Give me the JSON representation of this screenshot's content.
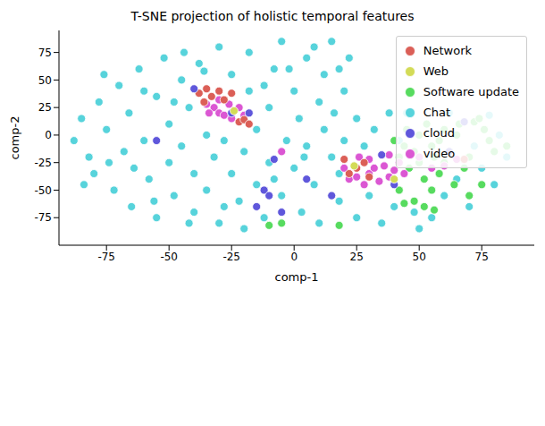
{
  "chart_data": {
    "type": "scatter",
    "title": "T-SNE projection of holistic temporal features",
    "x_label": "comp-1",
    "y_label": "comp-2",
    "xlim": [
      -94,
      96
    ],
    "ylim": [
      -100,
      95
    ],
    "xticks": [
      -75,
      -50,
      -25,
      0,
      25,
      50,
      75
    ],
    "yticks": [
      -75,
      -50,
      -25,
      0,
      25,
      50,
      75
    ],
    "grid": false,
    "legend": "upper right",
    "marker": "circle",
    "series": [
      {
        "name": "Network",
        "color": "#db5f57",
        "values": [
          [
            -38,
            38
          ],
          [
            -35,
            42
          ],
          [
            -33,
            35
          ],
          [
            -30,
            40
          ],
          [
            -28,
            32
          ],
          [
            -36,
            30
          ],
          [
            -25,
            38
          ],
          [
            -22,
            12
          ],
          [
            -20,
            14
          ],
          [
            -18,
            10
          ],
          [
            25,
            -30
          ],
          [
            28,
            -25
          ],
          [
            22,
            -35
          ],
          [
            30,
            -38
          ],
          [
            68,
            -22
          ],
          [
            20,
            -22
          ]
        ]
      },
      {
        "name": "Web",
        "color": "#d3db57",
        "values": [
          [
            24,
            -28
          ],
          [
            40,
            -40
          ],
          [
            -24,
            22
          ]
        ]
      },
      {
        "name": "Software update",
        "color": "#57db5f",
        "values": [
          [
            40,
            -5
          ],
          [
            42,
            -20
          ],
          [
            44,
            -10
          ],
          [
            45,
            5
          ],
          [
            46,
            -30
          ],
          [
            48,
            -15
          ],
          [
            50,
            0
          ],
          [
            50,
            -25
          ],
          [
            52,
            -40
          ],
          [
            53,
            10
          ],
          [
            55,
            -10
          ],
          [
            56,
            -20
          ],
          [
            58,
            -5
          ],
          [
            58,
            -35
          ],
          [
            60,
            5
          ],
          [
            60,
            -25
          ],
          [
            62,
            -15
          ],
          [
            64,
            -45
          ],
          [
            65,
            0
          ],
          [
            66,
            10
          ],
          [
            68,
            -30
          ],
          [
            70,
            -20
          ],
          [
            72,
            12
          ],
          [
            74,
            15
          ],
          [
            76,
            5
          ],
          [
            78,
            -5
          ],
          [
            80,
            -15
          ],
          [
            75,
            -45
          ],
          [
            70,
            -55
          ],
          [
            55,
            -50
          ],
          [
            48,
            -60
          ],
          [
            42,
            -50
          ],
          [
            52,
            -65
          ],
          [
            44,
            -62
          ],
          [
            -5,
            -80
          ],
          [
            -10,
            -82
          ],
          [
            18,
            -82
          ],
          [
            56,
            -68
          ],
          [
            85,
            -10
          ]
        ]
      },
      {
        "name": "Chat",
        "color": "#57d3db",
        "values": [
          [
            -85,
            15
          ],
          [
            -82,
            -20
          ],
          [
            -80,
            -35
          ],
          [
            -78,
            30
          ],
          [
            -75,
            5
          ],
          [
            -72,
            -50
          ],
          [
            -70,
            45
          ],
          [
            -68,
            -15
          ],
          [
            -66,
            20
          ],
          [
            -65,
            -65
          ],
          [
            -62,
            60
          ],
          [
            -60,
            -5
          ],
          [
            -58,
            -40
          ],
          [
            -55,
            35
          ],
          [
            -55,
            -75
          ],
          [
            -52,
            70
          ],
          [
            -50,
            10
          ],
          [
            -50,
            -25
          ],
          [
            -48,
            -55
          ],
          [
            -45,
            50
          ],
          [
            -45,
            -10
          ],
          [
            -42,
            25
          ],
          [
            -40,
            -70
          ],
          [
            -40,
            -35
          ],
          [
            -38,
            65
          ],
          [
            -35,
            0
          ],
          [
            -35,
            -50
          ],
          [
            -32,
            -20
          ],
          [
            -30,
            80
          ],
          [
            -30,
            -80
          ],
          [
            -28,
            -5
          ],
          [
            -25,
            55
          ],
          [
            -25,
            -35
          ],
          [
            -22,
            -60
          ],
          [
            -20,
            -15
          ],
          [
            -18,
            75
          ],
          [
            -18,
            40
          ],
          [
            -15,
            -45
          ],
          [
            -15,
            5
          ],
          [
            -12,
            -75
          ],
          [
            -10,
            25
          ],
          [
            -10,
            -25
          ],
          [
            -8,
            60
          ],
          [
            -5,
            -55
          ],
          [
            -5,
            85
          ],
          [
            -3,
            -5
          ],
          [
            0,
            40
          ],
          [
            0,
            -30
          ],
          [
            2,
            15
          ],
          [
            3,
            -70
          ],
          [
            5,
            70
          ],
          [
            5,
            -10
          ],
          [
            8,
            -45
          ],
          [
            10,
            30
          ],
          [
            10,
            -80
          ],
          [
            12,
            55
          ],
          [
            12,
            5
          ],
          [
            15,
            -20
          ],
          [
            15,
            85
          ],
          [
            18,
            -60
          ],
          [
            20,
            40
          ],
          [
            20,
            -5
          ],
          [
            22,
            70
          ],
          [
            25,
            15
          ],
          [
            25,
            -75
          ],
          [
            28,
            -10
          ],
          [
            30,
            -55
          ],
          [
            32,
            5
          ],
          [
            35,
            -80
          ],
          [
            38,
            20
          ],
          [
            40,
            -65
          ],
          [
            42,
            -5
          ],
          [
            45,
            20
          ],
          [
            48,
            -70
          ],
          [
            50,
            -85
          ],
          [
            55,
            -75
          ],
          [
            60,
            -55
          ],
          [
            62,
            20
          ],
          [
            65,
            -40
          ],
          [
            70,
            -65
          ],
          [
            72,
            -10
          ],
          [
            75,
            -30
          ],
          [
            78,
            18
          ],
          [
            80,
            -45
          ],
          [
            82,
            0
          ],
          [
            85,
            -20
          ],
          [
            -88,
            -5
          ],
          [
            -84,
            -45
          ],
          [
            -76,
            55
          ],
          [
            -74,
            -25
          ],
          [
            -64,
            -30
          ],
          [
            -60,
            40
          ],
          [
            -56,
            -60
          ],
          [
            -48,
            30
          ],
          [
            -44,
            75
          ],
          [
            -42,
            -80
          ],
          [
            -36,
            58
          ],
          [
            -28,
            -65
          ],
          [
            -20,
            -85
          ],
          [
            -12,
            45
          ],
          [
            -8,
            -40
          ],
          [
            -2,
            60
          ],
          [
            4,
            -20
          ],
          [
            8,
            80
          ],
          [
            16,
            20
          ],
          [
            18,
            -35
          ],
          [
            18,
            60
          ]
        ]
      },
      {
        "name": "cloud",
        "color": "#5f57db",
        "values": [
          [
            -25,
            20
          ],
          [
            -12,
            -50
          ],
          [
            -8,
            -22
          ],
          [
            -15,
            -65
          ],
          [
            -55,
            -5
          ],
          [
            5,
            -40
          ],
          [
            15,
            -55
          ],
          [
            35,
            -18
          ],
          [
            -40,
            42
          ],
          [
            40,
            -45
          ],
          [
            62,
            -15
          ],
          [
            68,
            12
          ],
          [
            -18,
            20
          ],
          [
            -5,
            -70
          ],
          [
            -10,
            -55
          ]
        ]
      },
      {
        "name": "video",
        "color": "#db57d3",
        "values": [
          [
            -35,
            28
          ],
          [
            -32,
            25
          ],
          [
            -30,
            20
          ],
          [
            -28,
            18
          ],
          [
            -26,
            28
          ],
          [
            -24,
            22
          ],
          [
            -22,
            25
          ],
          [
            -20,
            18
          ],
          [
            -25,
            15
          ],
          [
            -30,
            32
          ],
          [
            -34,
            20
          ],
          [
            20,
            -30
          ],
          [
            22,
            -40
          ],
          [
            25,
            -38
          ],
          [
            28,
            -45
          ],
          [
            30,
            -35
          ],
          [
            32,
            -30
          ],
          [
            34,
            -42
          ],
          [
            36,
            -28
          ],
          [
            38,
            -38
          ],
          [
            40,
            -32
          ],
          [
            26,
            -20
          ],
          [
            30,
            -22
          ],
          [
            42,
            -25
          ],
          [
            44,
            -35
          ],
          [
            50,
            -20
          ],
          [
            55,
            -30
          ],
          [
            60,
            -28
          ],
          [
            65,
            -22
          ],
          [
            -5,
            -15
          ],
          [
            38,
            -18
          ]
        ]
      }
    ]
  }
}
